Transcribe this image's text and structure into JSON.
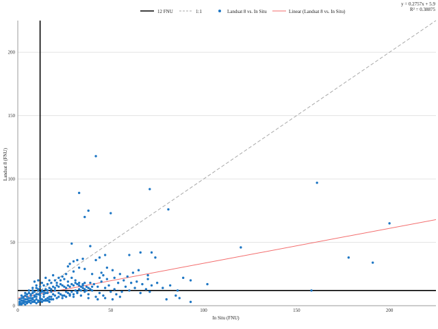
{
  "chart_data": {
    "type": "scatter",
    "xlabel": "In Situ (FNU)",
    "ylabel": "Landsat 8 (FNU)",
    "xlim": [
      0,
      225
    ],
    "ylim": [
      0,
      225
    ],
    "x_ticks": [
      0,
      50,
      100,
      150,
      200
    ],
    "y_ticks": [
      0,
      50,
      100,
      150,
      200
    ],
    "grid": "horizontal",
    "legend_position": "top",
    "threshold_value": 12,
    "legend": {
      "threshold": "12 FNU",
      "one_to_one": "1:1",
      "scatter": "Landsat 8 vs. In Situ",
      "linear": "Linear  (Landsat 8 vs. In Situ)"
    },
    "trendline": {
      "equation": "y = 0.2757x + 5.9",
      "r_squared": "R² = 0.38875",
      "slope": 0.2757,
      "intercept": 5.9
    },
    "colors": {
      "points": "#1f77c4",
      "linear": "#f36b6b",
      "one_to_one": "#a8a8a8",
      "threshold": "#000000"
    },
    "points": [
      [
        42,
        118
      ],
      [
        161,
        97
      ],
      [
        33,
        89
      ],
      [
        71,
        92
      ],
      [
        38,
        75
      ],
      [
        36,
        70
      ],
      [
        50,
        73
      ],
      [
        81,
        76
      ],
      [
        200,
        65
      ],
      [
        29,
        49
      ],
      [
        39,
        47
      ],
      [
        120,
        46
      ],
      [
        178,
        38
      ],
      [
        191,
        34
      ],
      [
        72,
        42
      ],
      [
        74,
        38
      ],
      [
        66,
        42
      ],
      [
        60,
        40
      ],
      [
        47,
        40
      ],
      [
        44,
        38
      ],
      [
        42,
        36
      ],
      [
        35,
        37
      ],
      [
        32,
        36
      ],
      [
        30,
        35
      ],
      [
        28,
        33
      ],
      [
        27,
        31
      ],
      [
        33,
        30
      ],
      [
        36,
        29
      ],
      [
        48,
        30
      ],
      [
        51,
        28
      ],
      [
        55,
        25
      ],
      [
        65,
        28
      ],
      [
        70,
        24
      ],
      [
        62,
        26
      ],
      [
        45,
        26
      ],
      [
        40,
        25
      ],
      [
        30,
        27
      ],
      [
        26,
        25
      ],
      [
        24,
        23
      ],
      [
        22,
        22
      ],
      [
        20,
        20
      ],
      [
        18,
        18
      ],
      [
        16,
        17
      ],
      [
        14,
        16
      ],
      [
        12,
        15
      ],
      [
        10,
        14
      ],
      [
        8,
        12
      ],
      [
        9,
        19
      ],
      [
        11,
        20
      ],
      [
        13,
        18
      ],
      [
        15,
        22
      ],
      [
        17,
        20
      ],
      [
        19,
        24
      ],
      [
        21,
        18
      ],
      [
        23,
        20
      ],
      [
        25,
        21
      ],
      [
        27,
        19
      ],
      [
        29,
        22
      ],
      [
        31,
        20
      ],
      [
        33,
        18
      ],
      [
        35,
        16
      ],
      [
        37,
        15
      ],
      [
        39,
        18
      ],
      [
        41,
        17
      ],
      [
        43,
        15
      ],
      [
        45,
        19
      ],
      [
        47,
        14
      ],
      [
        49,
        16
      ],
      [
        52,
        13
      ],
      [
        54,
        18
      ],
      [
        58,
        15
      ],
      [
        61,
        18
      ],
      [
        63,
        14
      ],
      [
        67,
        17
      ],
      [
        69,
        13
      ],
      [
        72,
        16
      ],
      [
        75,
        18
      ],
      [
        78,
        14
      ],
      [
        82,
        16
      ],
      [
        86,
        12
      ],
      [
        89,
        22
      ],
      [
        93,
        20
      ],
      [
        102,
        17
      ],
      [
        93,
        3
      ],
      [
        85,
        8
      ],
      [
        87,
        6
      ],
      [
        80,
        5
      ],
      [
        158,
        12
      ],
      [
        70,
        21
      ],
      [
        64,
        19
      ],
      [
        56,
        11
      ],
      [
        53,
        9
      ],
      [
        50,
        11
      ],
      [
        46,
        8
      ],
      [
        44,
        10
      ],
      [
        42,
        7
      ],
      [
        40,
        12
      ],
      [
        38,
        9
      ],
      [
        36,
        11
      ],
      [
        34,
        8
      ],
      [
        32,
        10
      ],
      [
        30,
        7
      ],
      [
        28,
        9
      ],
      [
        26,
        11
      ],
      [
        24,
        8
      ],
      [
        22,
        10
      ],
      [
        20,
        12
      ],
      [
        19,
        9
      ],
      [
        18,
        11
      ],
      [
        17,
        7
      ],
      [
        16,
        10
      ],
      [
        15,
        13
      ],
      [
        14,
        9
      ],
      [
        13,
        11
      ],
      [
        12,
        8
      ],
      [
        11,
        12
      ],
      [
        10,
        9
      ],
      [
        9,
        7
      ],
      [
        8,
        10
      ],
      [
        7,
        8
      ],
      [
        6,
        6
      ],
      [
        5,
        9
      ],
      [
        4,
        5
      ],
      [
        3,
        7
      ],
      [
        2,
        4
      ],
      [
        1,
        3
      ],
      [
        2,
        6
      ],
      [
        3,
        2
      ],
      [
        4,
        8
      ],
      [
        5,
        3
      ],
      [
        6,
        10
      ],
      [
        7,
        4
      ],
      [
        8,
        6
      ],
      [
        9,
        3
      ],
      [
        10,
        5
      ],
      [
        11,
        4
      ],
      [
        12,
        6
      ],
      [
        13,
        5
      ],
      [
        14,
        7
      ],
      [
        15,
        4
      ],
      [
        16,
        6
      ],
      [
        17,
        5
      ],
      [
        18,
        7
      ],
      [
        19,
        5
      ],
      [
        20,
        8
      ],
      [
        21,
        6
      ],
      [
        22,
        7
      ],
      [
        23,
        9
      ],
      [
        24,
        6
      ],
      [
        25,
        8
      ],
      [
        26,
        7
      ],
      [
        27,
        10
      ],
      [
        28,
        8
      ],
      [
        29,
        11
      ],
      [
        30,
        9
      ],
      [
        31,
        12
      ],
      [
        32,
        11
      ],
      [
        33,
        13
      ],
      [
        34,
        12
      ],
      [
        35,
        14
      ],
      [
        36,
        13
      ],
      [
        37,
        12
      ],
      [
        38,
        14
      ],
      [
        39,
        13
      ],
      [
        40,
        15
      ],
      [
        1,
        1
      ],
      [
        2,
        2
      ],
      [
        3,
        4
      ],
      [
        4,
        3
      ],
      [
        5,
        5
      ],
      [
        6,
        4
      ],
      [
        7,
        6
      ],
      [
        8,
        5
      ],
      [
        9,
        8
      ],
      [
        10,
        7
      ],
      [
        11,
        9
      ],
      [
        12,
        10
      ],
      [
        13,
        12
      ],
      [
        14,
        11
      ],
      [
        15,
        10
      ],
      [
        16,
        12
      ],
      [
        17,
        14
      ],
      [
        18,
        13
      ],
      [
        19,
        15
      ],
      [
        20,
        14
      ],
      [
        21,
        16
      ],
      [
        22,
        15
      ],
      [
        23,
        17
      ],
      [
        24,
        16
      ],
      [
        25,
        15
      ],
      [
        26,
        14
      ],
      [
        27,
        16
      ],
      [
        28,
        15
      ],
      [
        29,
        17
      ],
      [
        30,
        16
      ],
      [
        31,
        18
      ],
      [
        32,
        17
      ],
      [
        33,
        16
      ],
      [
        34,
        15
      ],
      [
        35,
        17
      ],
      [
        36,
        18
      ],
      [
        1,
        5
      ],
      [
        2,
        8
      ],
      [
        3,
        6
      ],
      [
        4,
        10
      ],
      [
        5,
        7
      ],
      [
        6,
        12
      ],
      [
        7,
        9
      ],
      [
        8,
        14
      ],
      [
        9,
        11
      ],
      [
        10,
        16
      ],
      [
        11,
        13
      ],
      [
        1,
        2
      ],
      [
        2,
        1
      ],
      [
        3,
        3
      ],
      [
        4,
        1
      ],
      [
        5,
        2
      ],
      [
        6,
        3
      ],
      [
        7,
        2
      ],
      [
        8,
        3
      ],
      [
        9,
        4
      ],
      [
        10,
        2
      ],
      [
        11,
        3
      ],
      [
        12,
        4
      ],
      [
        13,
        3
      ],
      [
        14,
        4
      ],
      [
        15,
        5
      ],
      [
        16,
        4
      ],
      [
        17,
        3
      ],
      [
        18,
        5
      ],
      [
        44,
        22
      ],
      [
        46,
        24
      ],
      [
        48,
        21
      ],
      [
        52,
        22
      ],
      [
        57,
        20
      ],
      [
        59,
        23
      ],
      [
        60,
        12
      ],
      [
        66,
        10
      ],
      [
        71,
        11
      ],
      [
        43,
        5
      ],
      [
        47,
        6
      ],
      [
        51,
        5
      ],
      [
        55,
        7
      ],
      [
        38,
        6
      ]
    ]
  }
}
